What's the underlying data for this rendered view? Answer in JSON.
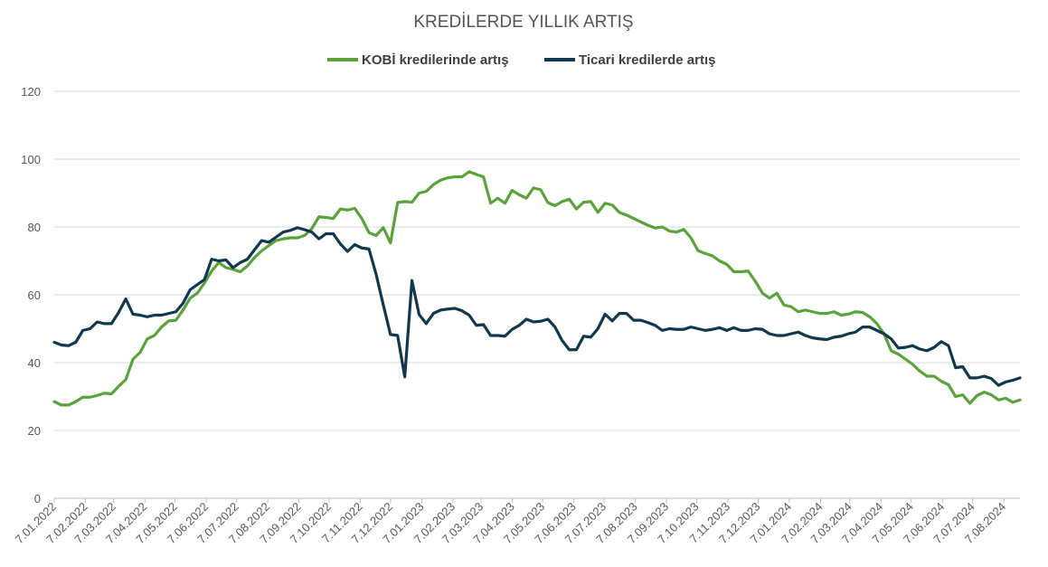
{
  "chart_data": {
    "type": "line",
    "title": "KREDİLERDE YILLIK ARTIŞ",
    "xlabel": "",
    "ylabel": "",
    "ylim": [
      0,
      120
    ],
    "yticks": [
      0,
      20,
      40,
      60,
      80,
      100,
      120
    ],
    "grid": true,
    "legend_position": "top",
    "x_tick_labels": [
      "7.01.2022",
      "7.02.2022",
      "7.03.2022",
      "7.04.2022",
      "7.05.2022",
      "7.06.2022",
      "7.07.2022",
      "7.08.2022",
      "7.09.2022",
      "7.10.2022",
      "7.11.2022",
      "7.12.2022",
      "7.01.2023",
      "7.02.2023",
      "7.03.2023",
      "7.04.2023",
      "7.05.2023",
      "7.06.2023",
      "7.07.2023",
      "7.08.2023",
      "7.09.2023",
      "7.10.2023",
      "7.11.2023",
      "7.12.2023",
      "7.01.2024",
      "7.02.2024",
      "7.03.2024",
      "7.04.2024",
      "7.05.2024",
      "7.06.2024",
      "7.07.2024",
      "7.08.2024"
    ],
    "x_start": "2022-01-07",
    "x_end": "2024-08-23",
    "series": [
      {
        "name": "KOBİ kredilerinde artış",
        "color": "#5aa33a",
        "values": [
          28.5,
          27.5,
          27.5,
          28.5,
          29.8,
          29.8,
          30.3,
          31.0,
          30.8,
          33.0,
          35.0,
          41.0,
          43.0,
          47.0,
          48.0,
          50.5,
          52.3,
          52.5,
          55.5,
          59.0,
          60.5,
          63.5,
          67.0,
          69.5,
          68.0,
          67.5,
          66.8,
          68.5,
          71.0,
          73.0,
          74.5,
          76.0,
          76.5,
          76.8,
          76.8,
          77.5,
          79.5,
          83.0,
          82.8,
          82.5,
          85.3,
          85.0,
          85.5,
          82.5,
          78.3,
          77.5,
          79.8,
          75.3,
          87.2,
          87.5,
          87.3,
          90.0,
          90.5,
          92.5,
          93.8,
          94.5,
          94.8,
          94.8,
          96.3,
          95.5,
          94.8,
          87.0,
          88.5,
          87.0,
          90.8,
          89.5,
          88.5,
          91.5,
          91.0,
          87.2,
          86.3,
          87.5,
          88.2,
          85.3,
          87.3,
          87.5,
          84.3,
          87.0,
          86.5,
          84.3,
          83.5,
          82.5,
          81.5,
          80.5,
          79.7,
          80.0,
          78.8,
          78.5,
          79.3,
          76.8,
          73.0,
          72.2,
          71.5,
          70.0,
          69.0,
          66.8,
          66.8,
          67.0,
          64.0,
          60.5,
          59.0,
          60.5,
          57.0,
          56.5,
          55.0,
          55.5,
          55.0,
          54.5,
          54.5,
          55.0,
          54.0,
          54.3,
          55.0,
          54.8,
          53.5,
          51.5,
          48.5,
          43.5,
          42.5,
          41.0,
          39.5,
          37.5,
          36.0,
          36.0,
          34.5,
          33.5,
          30.0,
          30.5,
          28.0,
          30.3,
          31.3,
          30.5,
          29.0,
          29.5,
          28.3,
          29.0
        ]
      },
      {
        "name": "Ticari kredilerde artış",
        "color": "#10384f",
        "values": [
          46.0,
          45.2,
          45.0,
          46.0,
          49.5,
          50.0,
          52.0,
          51.5,
          51.5,
          54.8,
          58.8,
          54.3,
          54.0,
          53.5,
          54.0,
          54.0,
          54.5,
          55.0,
          57.5,
          61.5,
          63.0,
          64.5,
          70.5,
          70.0,
          70.3,
          68.0,
          69.5,
          70.5,
          73.3,
          76.0,
          75.5,
          77.0,
          78.5,
          79.0,
          79.8,
          79.2,
          78.5,
          76.5,
          78.0,
          78.0,
          75.0,
          72.8,
          74.8,
          73.8,
          73.5,
          66.0,
          57.0,
          48.3,
          48.0,
          35.8,
          64.2,
          54.2,
          51.5,
          54.5,
          55.5,
          55.8,
          56.0,
          55.3,
          54.0,
          51.0,
          51.2,
          48.0,
          48.0,
          47.8,
          49.8,
          51.0,
          52.8,
          52.0,
          52.2,
          52.8,
          50.5,
          46.5,
          43.8,
          43.8,
          47.8,
          47.5,
          50.0,
          54.3,
          52.3,
          54.5,
          54.5,
          52.5,
          52.5,
          51.8,
          51.0,
          49.5,
          50.0,
          49.8,
          49.8,
          50.5,
          50.0,
          49.5,
          49.8,
          50.3,
          49.5,
          50.3,
          49.5,
          49.5,
          50.0,
          49.8,
          48.5,
          48.0,
          48.0,
          48.5,
          49.0,
          48.0,
          47.3,
          47.0,
          46.8,
          47.5,
          47.8,
          48.5,
          49.0,
          50.5,
          50.5,
          49.5,
          48.5,
          47.0,
          44.3,
          44.5,
          45.0,
          44.0,
          43.5,
          44.5,
          46.2,
          45.0,
          38.5,
          38.8,
          35.5,
          35.5,
          36.0,
          35.3,
          33.3,
          34.3,
          34.8,
          35.5
        ]
      }
    ]
  }
}
